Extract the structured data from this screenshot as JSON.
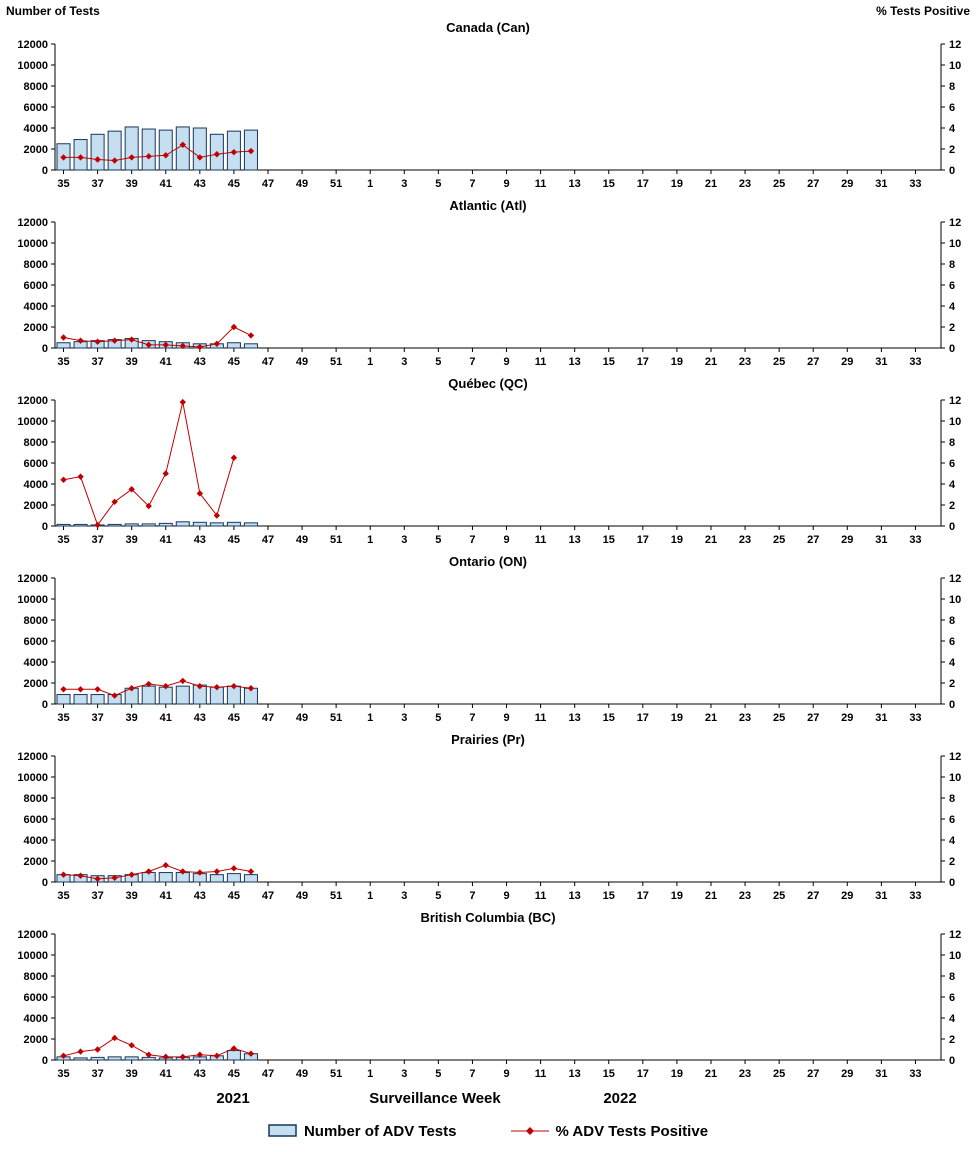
{
  "chart_config": {
    "type": "combo-bar-line",
    "ylabel_left": "Number of Tests",
    "ylabel_right": "% Tests Positive",
    "xlabel": "Surveillance Week",
    "year_labels": [
      "2021",
      "2022"
    ],
    "weeks_total": 52,
    "x_tick_labels": [
      "35",
      "37",
      "39",
      "41",
      "43",
      "45",
      "47",
      "49",
      "51",
      "1",
      "3",
      "5",
      "7",
      "9",
      "11",
      "13",
      "15",
      "17",
      "19",
      "21",
      "23",
      "25",
      "27",
      "29",
      "31",
      "33"
    ],
    "left_ylim": [
      0,
      12000
    ],
    "left_yticks": [
      0,
      2000,
      4000,
      6000,
      8000,
      10000,
      12000
    ],
    "right_ylim": [
      0,
      12
    ],
    "right_yticks": [
      0,
      2,
      4,
      6,
      8,
      10,
      12
    ],
    "grid": false
  },
  "chart_data": [
    {
      "title": "Canada (Can)",
      "weeks": [
        35,
        36,
        37,
        38,
        39,
        40,
        41,
        42,
        43,
        44,
        45,
        46
      ],
      "tests": [
        2500,
        2900,
        3400,
        3700,
        4100,
        3900,
        3800,
        4100,
        4000,
        3400,
        3700,
        3800
      ],
      "pct_positive": [
        1.2,
        1.2,
        1.0,
        0.9,
        1.2,
        1.3,
        1.4,
        2.4,
        1.2,
        1.5,
        1.7,
        1.8
      ]
    },
    {
      "title": "Atlantic (Atl)",
      "weeks": [
        35,
        36,
        37,
        38,
        39,
        40,
        41,
        42,
        43,
        44,
        45,
        46
      ],
      "tests": [
        500,
        600,
        700,
        800,
        900,
        700,
        600,
        500,
        400,
        400,
        500,
        400
      ],
      "pct_positive": [
        1.0,
        0.7,
        0.6,
        0.7,
        0.8,
        0.3,
        0.3,
        0.2,
        0.1,
        0.4,
        2.0,
        1.2
      ]
    },
    {
      "title": "Québec (QC)",
      "weeks": [
        35,
        36,
        37,
        38,
        39,
        40,
        41,
        42,
        43,
        44,
        45,
        46
      ],
      "tests": [
        150,
        150,
        100,
        150,
        200,
        200,
        250,
        400,
        350,
        300,
        350,
        300
      ],
      "pct_positive": [
        4.4,
        4.7,
        0.1,
        2.3,
        3.5,
        1.9,
        5.0,
        11.8,
        3.1,
        1.0,
        6.5,
        null
      ]
    },
    {
      "title": "Ontario (ON)",
      "weeks": [
        35,
        36,
        37,
        38,
        39,
        40,
        41,
        42,
        43,
        44,
        45,
        46
      ],
      "tests": [
        900,
        900,
        900,
        900,
        1500,
        1700,
        1600,
        1700,
        1800,
        1600,
        1700,
        1500
      ],
      "pct_positive": [
        1.4,
        1.4,
        1.4,
        0.8,
        1.5,
        1.9,
        1.7,
        2.2,
        1.7,
        1.6,
        1.7,
        1.5
      ]
    },
    {
      "title": "Prairies (Pr)",
      "weeks": [
        35,
        36,
        37,
        38,
        39,
        40,
        41,
        42,
        43,
        44,
        45,
        46
      ],
      "tests": [
        700,
        700,
        600,
        600,
        700,
        900,
        900,
        900,
        800,
        700,
        800,
        700
      ],
      "pct_positive": [
        0.7,
        0.6,
        0.3,
        0.4,
        0.7,
        1.0,
        1.6,
        1.0,
        0.9,
        1.0,
        1.3,
        1.0
      ]
    },
    {
      "title": "British Columbia (BC)",
      "weeks": [
        35,
        36,
        37,
        38,
        39,
        40,
        41,
        42,
        43,
        44,
        45,
        46
      ],
      "tests": [
        300,
        200,
        250,
        300,
        300,
        250,
        200,
        250,
        300,
        400,
        900,
        600
      ],
      "pct_positive": [
        0.4,
        0.8,
        1.0,
        2.1,
        1.4,
        0.5,
        0.3,
        0.3,
        0.5,
        0.4,
        1.1,
        0.6
      ]
    }
  ],
  "legend": {
    "bars_label": "Number of ADV Tests",
    "line_label": "% ADV Tests Positive"
  },
  "colors": {
    "bar_fill": "#c5dff0",
    "bar_stroke": "#17375e",
    "line": "#c00000",
    "axis": "#000000"
  }
}
